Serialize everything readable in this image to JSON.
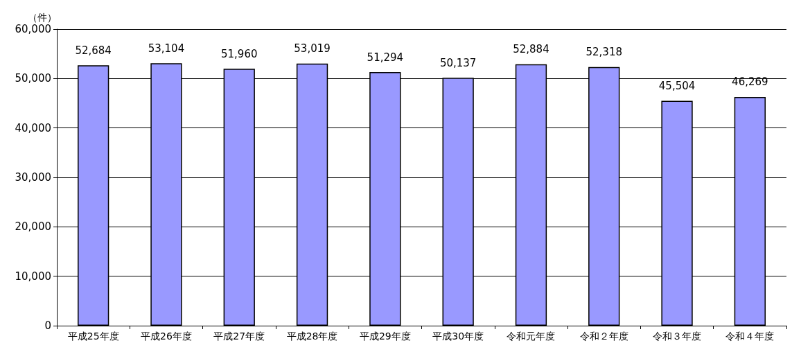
{
  "chart_data": {
    "type": "bar",
    "ylabel": "（件）",
    "categories": [
      "平成25年度",
      "平成26年度",
      "平成27年度",
      "平成28年度",
      "平成29年度",
      "平成30年度",
      "令和元年度",
      "令和２年度",
      "令和３年度",
      "令和４年度"
    ],
    "values": [
      52684,
      53104,
      51960,
      53019,
      51294,
      50137,
      52884,
      52318,
      45504,
      46269
    ],
    "value_labels": [
      "52,684",
      "53,104",
      "51,960",
      "53,019",
      "51,294",
      "50,137",
      "52,884",
      "52,318",
      "45,504",
      "46,269"
    ],
    "color": "#9999ff",
    "ylim": [
      0,
      60000
    ],
    "yticks": [
      0,
      {
        "value": 10000,
        "label": "10,000"
      },
      {
        "value": 20000,
        "label": "20,000"
      },
      {
        "value": 30000,
        "label": "30,000"
      },
      {
        "value": 40000,
        "label": "40,000"
      },
      {
        "value": 50000,
        "label": "50,000"
      },
      {
        "value": 60000,
        "label": "60,000"
      }
    ],
    "grid": "y"
  }
}
